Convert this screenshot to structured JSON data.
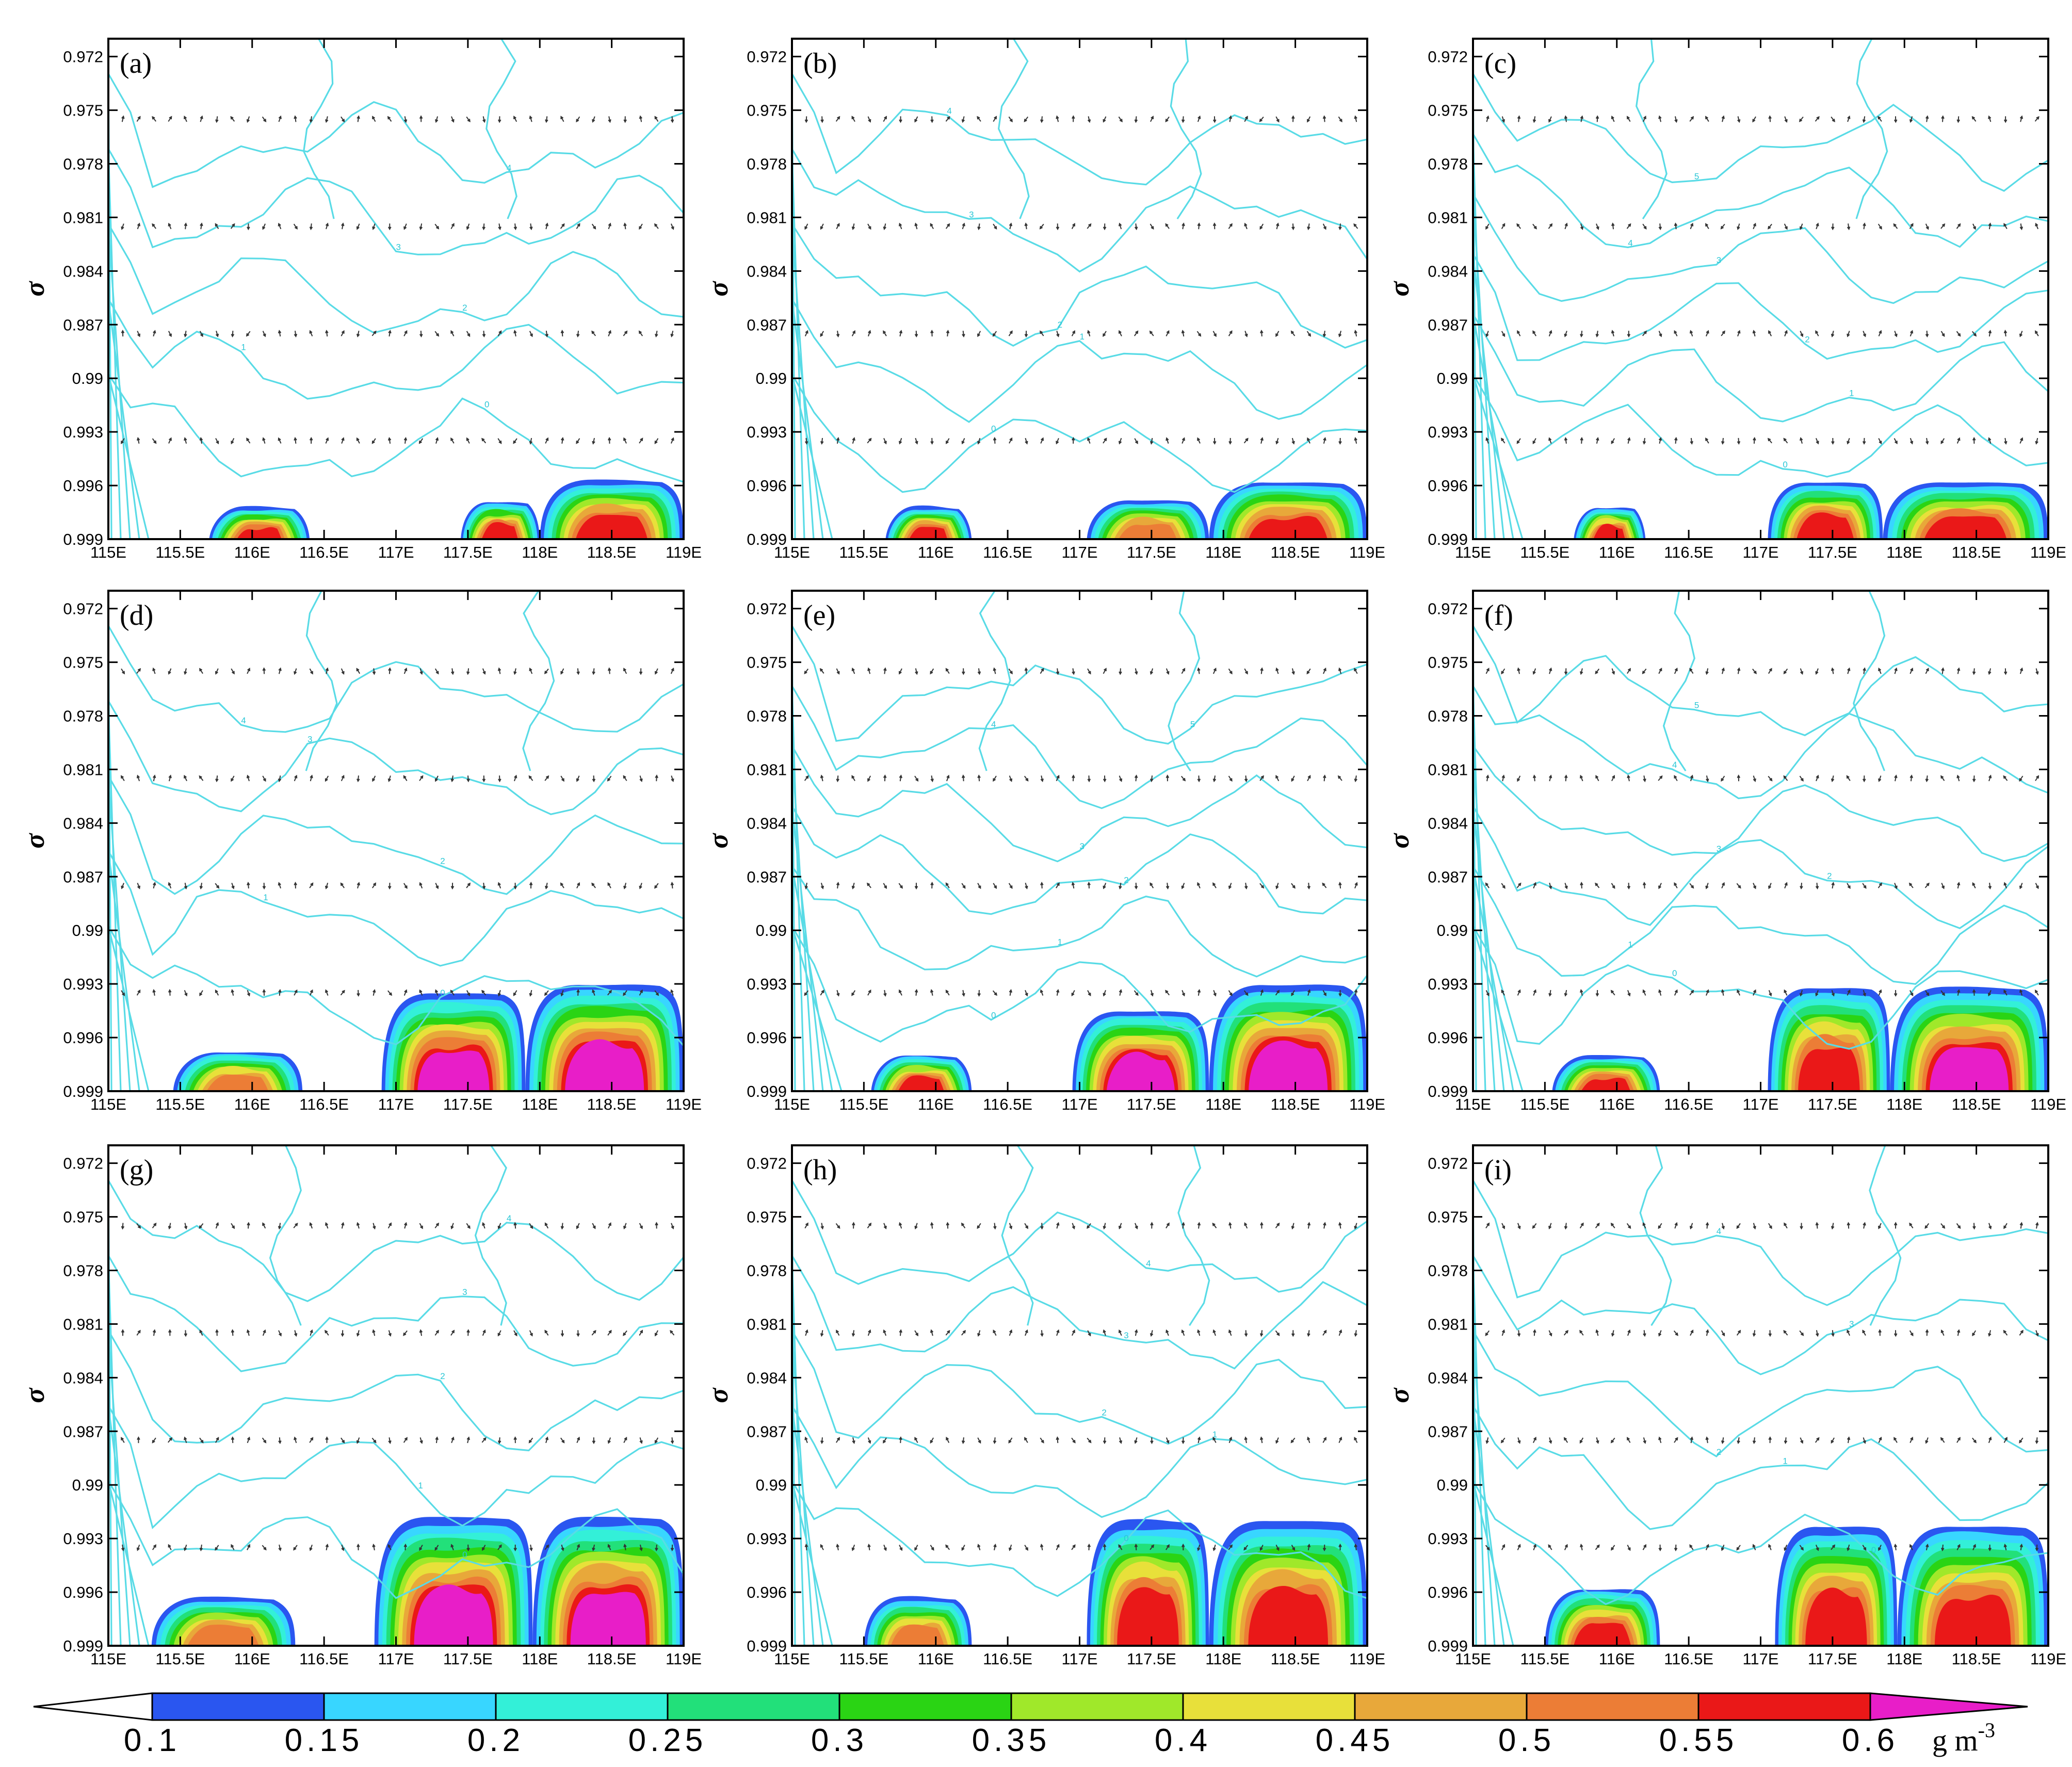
{
  "chart_data": {
    "type": "contour",
    "figure_layout": "3 rows x 3 columns of vertical cross-sections",
    "y_axis_label": "σ",
    "x_ticks": [
      "115E",
      "115.5E",
      "116E",
      "116.5E",
      "117E",
      "117.5E",
      "118E",
      "118.5E",
      "119E"
    ],
    "x_range": [
      115,
      119
    ],
    "y_ticks": [
      "0.972",
      "0.975",
      "0.978",
      "0.981",
      "0.984",
      "0.987",
      "0.99",
      "0.993",
      "0.996",
      "0.999"
    ],
    "y_range": [
      0.999,
      0.971
    ],
    "vector_levels": [
      0.9755,
      0.9815,
      0.9875,
      0.9935
    ],
    "panels": [
      {
        "label": "(a)",
        "contour_values": [
          4,
          3,
          2,
          1,
          0
        ],
        "blobs": [
          {
            "x": [
              115.7,
              116.4
            ],
            "top": 0.9972,
            "max_level": 0.55
          },
          {
            "x": [
              117.45,
              118.0
            ],
            "top": 0.9969,
            "max_level": 0.55
          },
          {
            "x": [
              118.0,
              119.0
            ],
            "top": 0.9957,
            "max_level": 0.55
          }
        ]
      },
      {
        "label": "(b)",
        "contour_values": [
          4,
          3,
          2,
          1,
          0
        ],
        "blobs": [
          {
            "x": [
              115.65,
              116.25
            ],
            "top": 0.9972,
            "max_level": 0.55
          },
          {
            "x": [
              117.05,
              117.9
            ],
            "top": 0.9968,
            "max_level": 0.5
          },
          {
            "x": [
              117.9,
              119.0
            ],
            "top": 0.9958,
            "max_level": 0.55
          }
        ]
      },
      {
        "label": "(c)",
        "contour_values": [
          5,
          4,
          3,
          2,
          1,
          0
        ],
        "blobs": [
          {
            "x": [
              115.7,
              116.2
            ],
            "top": 0.9972,
            "max_level": 0.55
          },
          {
            "x": [
              117.05,
              117.85
            ],
            "top": 0.9958,
            "max_level": 0.55
          },
          {
            "x": [
              117.85,
              119.0
            ],
            "top": 0.9958,
            "max_level": 0.55
          }
        ]
      },
      {
        "label": "(d)",
        "contour_values": [
          4,
          3,
          2,
          1,
          0
        ],
        "blobs": [
          {
            "x": [
              115.45,
              116.35
            ],
            "top": 0.9968,
            "max_level": 0.5
          },
          {
            "x": [
              116.9,
              117.9
            ],
            "top": 0.9935,
            "max_level": 0.6
          },
          {
            "x": [
              117.9,
              119.0
            ],
            "top": 0.993,
            "max_level": 0.6
          }
        ]
      },
      {
        "label": "(e)",
        "contour_values": [
          5,
          4,
          3,
          2,
          1,
          0
        ],
        "blobs": [
          {
            "x": [
              115.55,
              116.25
            ],
            "top": 0.997,
            "max_level": 0.55
          },
          {
            "x": [
              116.95,
              117.9
            ],
            "top": 0.9945,
            "max_level": 0.6
          },
          {
            "x": [
              117.9,
              119.0
            ],
            "top": 0.993,
            "max_level": 0.6
          }
        ]
      },
      {
        "label": "(f)",
        "contour_values": [
          5,
          4,
          3,
          2,
          1,
          0
        ],
        "blobs": [
          {
            "x": [
              115.55,
              116.3
            ],
            "top": 0.997,
            "max_level": 0.55
          },
          {
            "x": [
              117.05,
              117.9
            ],
            "top": 0.9932,
            "max_level": 0.55
          },
          {
            "x": [
              117.9,
              119.0
            ],
            "top": 0.9932,
            "max_level": 0.6
          }
        ]
      },
      {
        "label": "(g)",
        "contour_values": [
          4,
          3,
          2,
          1,
          0
        ],
        "blobs": [
          {
            "x": [
              115.3,
              116.3
            ],
            "top": 0.9963,
            "max_level": 0.5
          },
          {
            "x": [
              116.85,
              117.95
            ],
            "top": 0.9918,
            "max_level": 0.6
          },
          {
            "x": [
              117.95,
              119.0
            ],
            "top": 0.9918,
            "max_level": 0.6
          }
        ]
      },
      {
        "label": "(h)",
        "contour_values": [
          4,
          3,
          2,
          1,
          0
        ],
        "blobs": [
          {
            "x": [
              115.5,
              116.25
            ],
            "top": 0.9963,
            "max_level": 0.5
          },
          {
            "x": [
              117.05,
              117.9
            ],
            "top": 0.992,
            "max_level": 0.55
          },
          {
            "x": [
              117.9,
              119.0
            ],
            "top": 0.992,
            "max_level": 0.55
          }
        ]
      },
      {
        "label": "(i)",
        "contour_values": [
          4,
          3,
          2,
          1,
          0
        ],
        "blobs": [
          {
            "x": [
              115.5,
              116.3
            ],
            "top": 0.9958,
            "max_level": 0.55
          },
          {
            "x": [
              117.1,
              117.95
            ],
            "top": 0.9923,
            "max_level": 0.55
          },
          {
            "x": [
              117.95,
              119.0
            ],
            "top": 0.9923,
            "max_level": 0.55
          }
        ]
      }
    ],
    "colorbar": {
      "levels": [
        0.1,
        0.15,
        0.2,
        0.25,
        0.3,
        0.35,
        0.4,
        0.45,
        0.5,
        0.55,
        0.6
      ],
      "tick_labels": [
        "0.1",
        "0.15",
        "0.2",
        "0.25",
        "0.3",
        "0.35",
        "0.4",
        "0.45",
        "0.5",
        "0.55",
        "0.6"
      ],
      "colors": [
        "#ffffff",
        "#2a56f0",
        "#38d6ff",
        "#33f0d8",
        "#22e07a",
        "#2ad414",
        "#a0e82a",
        "#e8e03a",
        "#e8a83a",
        "#ec7d36",
        "#ea1818",
        "#e81ec8"
      ],
      "unit": "g m",
      "unit_exponent": "-3"
    }
  },
  "colors": {
    "contour": "#59dbe6",
    "contour_label": "#2ac7d6",
    "vector": "#333333"
  }
}
